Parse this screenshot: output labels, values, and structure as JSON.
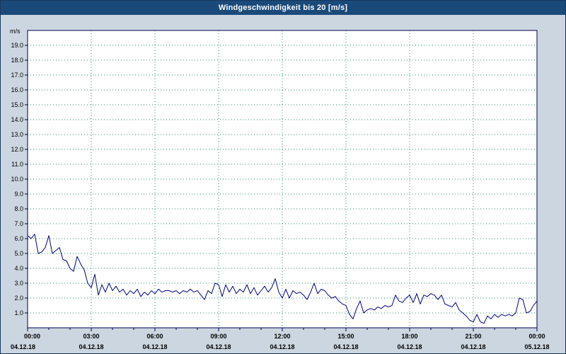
{
  "window": {
    "bg": "#ccd6e0",
    "border_color": "#16365c"
  },
  "title_bar": {
    "label": "Windgeschwindigkeit bis 20 [m/s]",
    "bg": "#1a4a7a",
    "fg": "#ffffff"
  },
  "chart_data": {
    "type": "line",
    "title": "Windgeschwindigkeit bis 20 [m/s]",
    "ylabel": "m/s",
    "xlabel": "",
    "ylim": [
      0,
      20
    ],
    "x_range_minutes": [
      0,
      1440
    ],
    "x_interval_minutes": 10,
    "grid": {
      "show": true,
      "style": "dotted",
      "color": "#2e8b74"
    },
    "axes_color": "#000050",
    "label_color": "#000000",
    "plot_bg": "#ffffff",
    "y_tick_labels": [
      "1.0",
      "2.0",
      "3.0",
      "4.0",
      "5.0",
      "6.0",
      "7.0",
      "8.0",
      "9.0",
      "10.0",
      "11.0",
      "12.0",
      "13.0",
      "14.0",
      "15.0",
      "16.0",
      "17.0",
      "18.0",
      "19.0"
    ],
    "x_ticks": [
      {
        "minutes": 0,
        "time": "00:00",
        "date": "04.12.18"
      },
      {
        "minutes": 180,
        "time": "03:00",
        "date": "04.12.18"
      },
      {
        "minutes": 360,
        "time": "06:00",
        "date": "04.12.18"
      },
      {
        "minutes": 540,
        "time": "09:00",
        "date": "04.12.18"
      },
      {
        "minutes": 720,
        "time": "12:00",
        "date": "04.12.18"
      },
      {
        "minutes": 900,
        "time": "15:00",
        "date": "04.12.18"
      },
      {
        "minutes": 1080,
        "time": "18:00",
        "date": "04.12.18"
      },
      {
        "minutes": 1260,
        "time": "21:00",
        "date": "04.12.18"
      },
      {
        "minutes": 1440,
        "time": "00:00",
        "date": "05.12.18"
      }
    ],
    "series": [
      {
        "name": "Windgeschwindigkeit",
        "color": "#00007f",
        "values": [
          6.2,
          6.0,
          6.3,
          5.0,
          5.1,
          5.4,
          6.2,
          5.0,
          5.2,
          5.4,
          4.6,
          4.5,
          4.0,
          3.8,
          4.8,
          4.3,
          3.9,
          3.0,
          2.7,
          3.6,
          2.2,
          2.9,
          2.4,
          3.0,
          2.5,
          2.8,
          2.4,
          2.6,
          2.2,
          2.5,
          2.3,
          2.6,
          2.1,
          2.4,
          2.2,
          2.5,
          2.3,
          2.6,
          2.4,
          2.5,
          2.5,
          2.4,
          2.5,
          2.3,
          2.5,
          2.4,
          2.6,
          2.4,
          2.5,
          2.2,
          1.9,
          2.5,
          2.3,
          3.0,
          2.9,
          2.1,
          2.9,
          2.4,
          2.8,
          2.3,
          2.6,
          2.4,
          2.9,
          2.3,
          2.7,
          2.2,
          2.5,
          2.8,
          2.4,
          2.7,
          3.3,
          2.4,
          2.0,
          2.6,
          2.0,
          2.5,
          2.3,
          2.4,
          2.2,
          1.9,
          2.4,
          3.0,
          2.3,
          2.6,
          2.5,
          2.2,
          2.0,
          2.1,
          1.8,
          1.6,
          1.5,
          0.9,
          0.6,
          1.3,
          1.8,
          1.0,
          1.2,
          1.3,
          1.2,
          1.4,
          1.3,
          1.5,
          1.4,
          1.5,
          2.2,
          1.8,
          1.7,
          2.0,
          2.2,
          1.7,
          2.3,
          1.6,
          2.2,
          2.1,
          2.3,
          2.2,
          1.9,
          2.2,
          1.6,
          1.5,
          1.4,
          1.7,
          1.2,
          1.0,
          0.8,
          0.5,
          0.4,
          0.9,
          0.4,
          0.3,
          0.8,
          0.6,
          0.9,
          0.7,
          0.9,
          0.8,
          0.9,
          0.8,
          1.0,
          2.0,
          1.9,
          1.0,
          1.1,
          1.5,
          1.8
        ]
      }
    ]
  }
}
